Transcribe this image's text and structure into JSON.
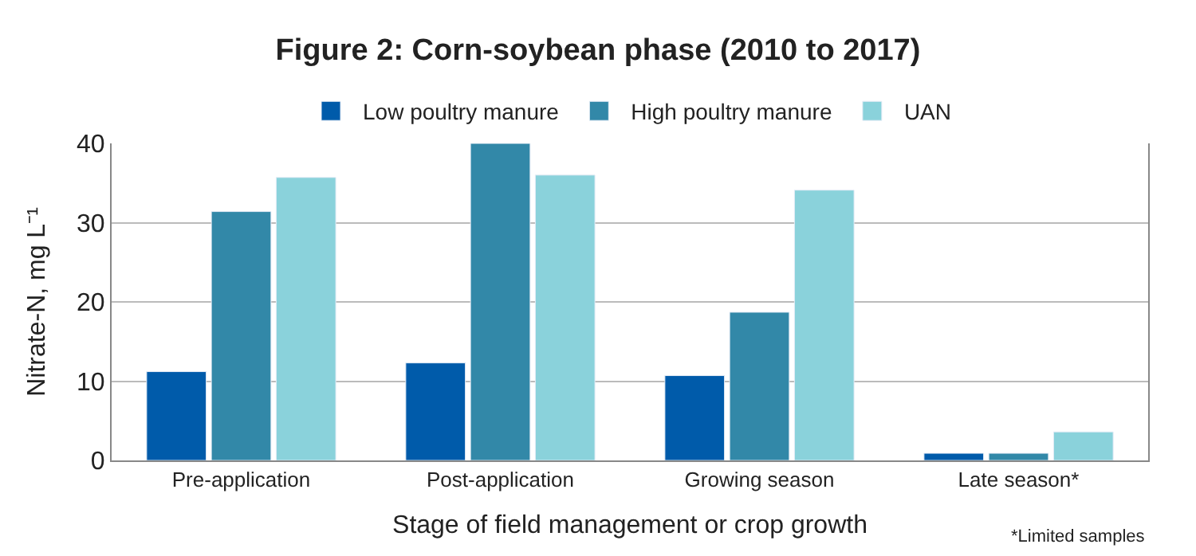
{
  "chart_data": {
    "type": "bar",
    "title": "Figure 2: Corn-soybean phase (2010 to 2017)",
    "xlabel": "Stage of field management or crop growth",
    "ylabel": "Nitrate-N, mg L⁻¹",
    "categories": [
      "Pre-application",
      "Post-application",
      "Growing season",
      "Late season*"
    ],
    "series": [
      {
        "name": "Low poultry manure",
        "color": "#005baa",
        "values": [
          11.2,
          12.3,
          10.7,
          0.9
        ]
      },
      {
        "name": "High poultry manure",
        "color": "#3288a8",
        "values": [
          31.4,
          40,
          18.7,
          0.9
        ]
      },
      {
        "name": "UAN",
        "color": "#8ad2db",
        "values": [
          35.7,
          36.0,
          34.1,
          3.6
        ]
      }
    ],
    "ylim": [
      0,
      40
    ],
    "yticks": [
      0,
      10,
      20,
      30,
      40
    ],
    "grid": "y",
    "legend": "top",
    "annotations": [
      "*Limited samples"
    ]
  }
}
